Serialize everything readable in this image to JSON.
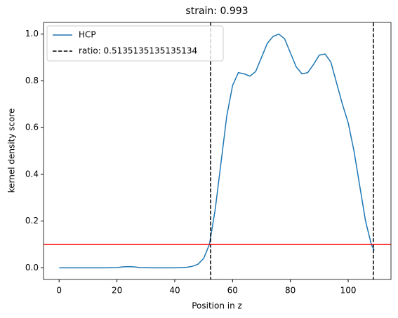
{
  "chart_data": {
    "type": "line",
    "title": "strain: 0.993",
    "xlabel": "Position in z",
    "ylabel": "kernel density score",
    "x": [
      0,
      4,
      8,
      12,
      16,
      20,
      22,
      24,
      26,
      28,
      32,
      36,
      40,
      44,
      46,
      48,
      50,
      52,
      54,
      56,
      58,
      60,
      62,
      64,
      66,
      68,
      70,
      72,
      74,
      76,
      78,
      80,
      82,
      84,
      86,
      88,
      90,
      92,
      94,
      96,
      98,
      100,
      102,
      104,
      106,
      108,
      109
    ],
    "series": [
      {
        "name": "HCP",
        "color": "#1f77b4",
        "values": [
          0,
          0,
          0,
          0,
          0,
          0.001,
          0.004,
          0.005,
          0.004,
          0.001,
          0,
          0,
          0,
          0.002,
          0.006,
          0.015,
          0.04,
          0.1,
          0.25,
          0.45,
          0.65,
          0.78,
          0.835,
          0.83,
          0.82,
          0.84,
          0.9,
          0.96,
          0.99,
          1.0,
          0.98,
          0.92,
          0.86,
          0.83,
          0.835,
          0.87,
          0.91,
          0.915,
          0.88,
          0.79,
          0.7,
          0.62,
          0.5,
          0.35,
          0.2,
          0.1,
          0.075
        ]
      }
    ],
    "vlines": {
      "name": "ratio: 0.5135135135135134",
      "color": "#000000",
      "values": [
        52.4,
        108.7
      ]
    },
    "hline": {
      "value": 0.1,
      "color": "#ff0000"
    },
    "xlim": [
      -5.4,
      114.8
    ],
    "ylim": [
      -0.05,
      1.05
    ],
    "xticks": [
      0,
      20,
      40,
      60,
      80,
      100
    ],
    "yticks": [
      {
        "value": 0,
        "label": "0.0"
      },
      {
        "value": 0.2,
        "label": "0.2"
      },
      {
        "value": 0.4,
        "label": "0.4"
      },
      {
        "value": 0.6,
        "label": "0.6"
      },
      {
        "value": 0.8,
        "label": "0.8"
      },
      {
        "value": 1,
        "label": "1.0"
      }
    ],
    "legend": "upper left"
  }
}
